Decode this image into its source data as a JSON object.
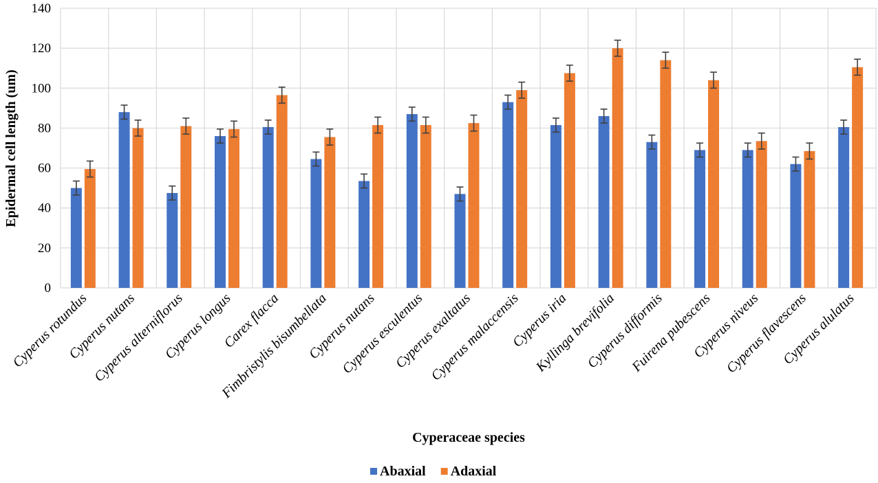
{
  "chart_data": {
    "type": "bar",
    "title": "",
    "xlabel": "Cyperaceae species",
    "ylabel": "Epidermal cell length (um)",
    "ylim": [
      0,
      140
    ],
    "yticks": [
      0,
      20,
      40,
      60,
      80,
      100,
      120,
      140
    ],
    "grid": true,
    "legend_position": "bottom",
    "categories": [
      "Cyperus rotundus",
      "Cyperus nutans",
      "Cyperus alterniflorus",
      "Cyperus longus",
      "Carex flacca",
      "Fimbristylis bisumbellata",
      "Cyperus nutans",
      "Cyperus esculentus",
      "Cyperus exaltatus",
      "Cyperus malaccensis",
      "Cyperus iria",
      "Kyllinga brevifolia",
      "Cyperus difformis",
      "Fuirena pubescens",
      "Cyperus niveus",
      "Cyperus flavescens",
      "Cyperus alulatus"
    ],
    "series": [
      {
        "name": "Abaxial",
        "color": "#4472C4",
        "values": [
          50,
          88,
          47.5,
          76,
          80.5,
          64.5,
          53.5,
          87,
          47,
          93,
          81.5,
          86,
          73,
          69,
          69,
          62,
          80.5
        ],
        "errors": [
          3.5,
          3.5,
          3.5,
          3.5,
          3.5,
          3.5,
          3.5,
          3.5,
          3.5,
          3.5,
          3.5,
          3.5,
          3.5,
          3.5,
          3.5,
          3.5,
          3.5
        ]
      },
      {
        "name": "Adaxial",
        "color": "#ED7D31",
        "values": [
          59.5,
          80,
          81,
          79.5,
          96.5,
          75.5,
          81.5,
          81.5,
          82.5,
          99,
          107.5,
          120,
          114,
          104,
          73.5,
          68.5,
          110.5
        ],
        "errors": [
          4,
          4,
          4,
          4,
          4,
          4,
          4,
          4,
          4,
          4,
          4,
          4,
          4,
          4,
          4,
          4,
          4
        ]
      }
    ]
  }
}
